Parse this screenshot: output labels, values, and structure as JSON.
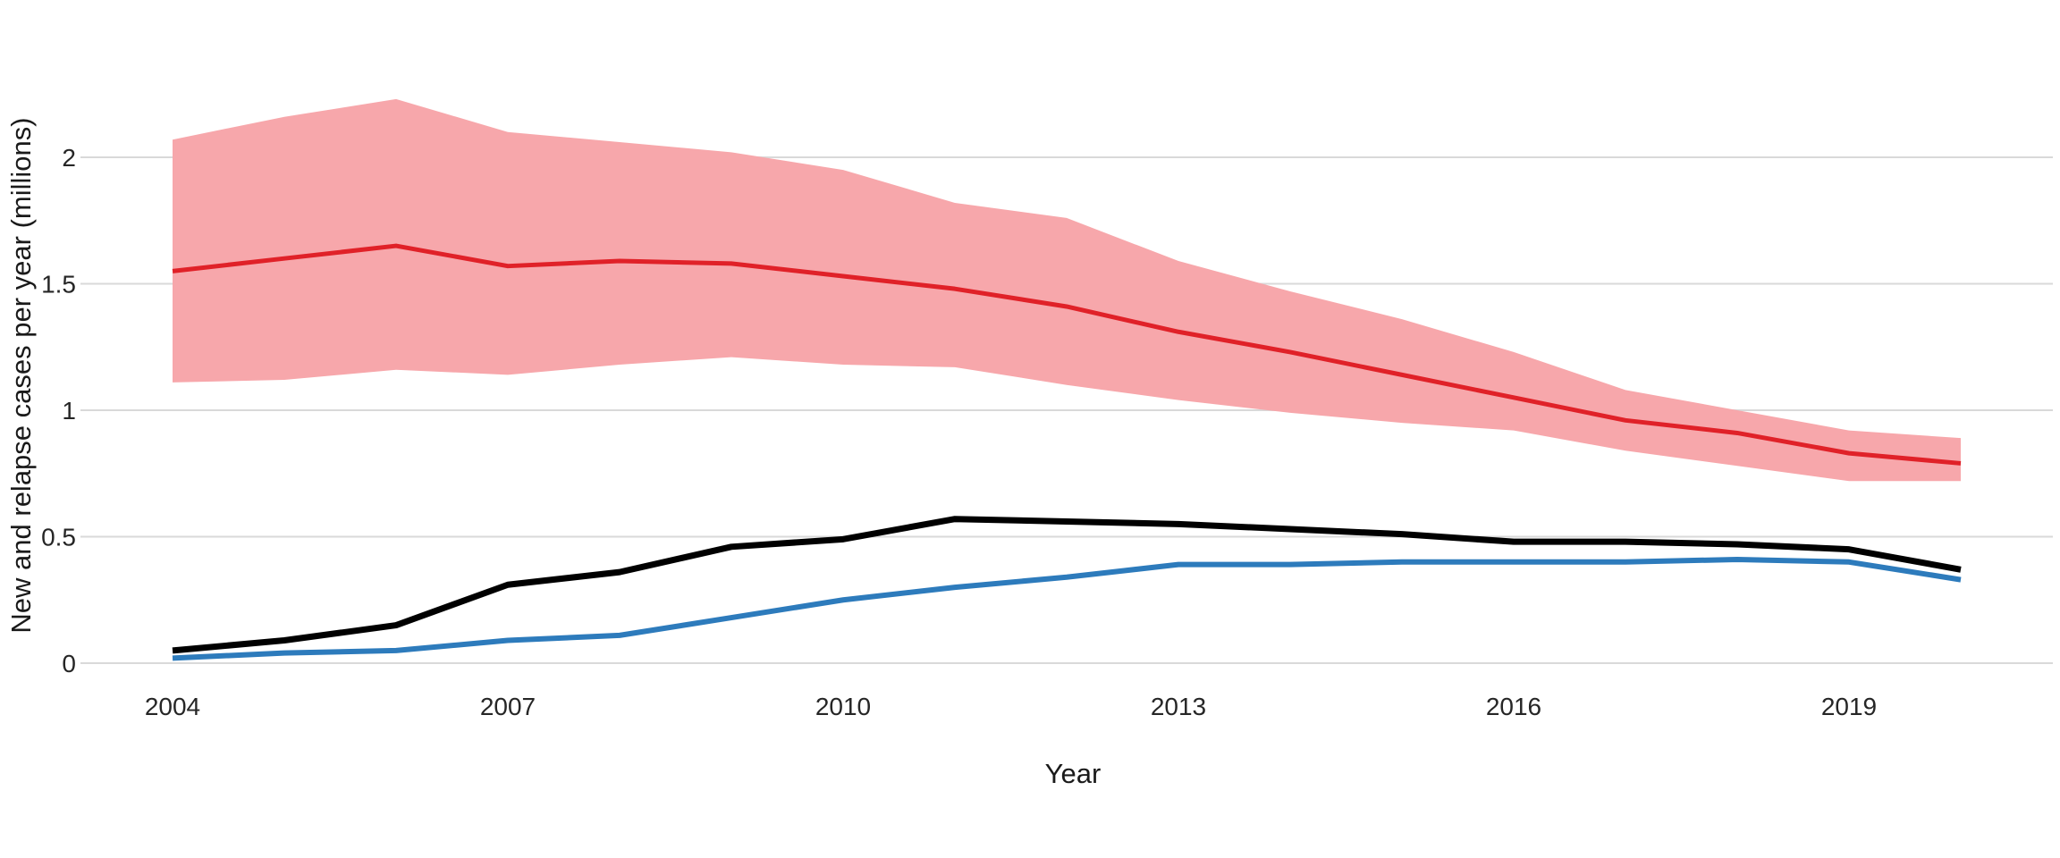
{
  "chart_data": {
    "type": "line",
    "title": "",
    "xlabel": "Year",
    "ylabel": "New and relapse cases per year (millions)",
    "x": [
      2004,
      2005,
      2006,
      2007,
      2008,
      2009,
      2010,
      2011,
      2012,
      2013,
      2014,
      2015,
      2016,
      2017,
      2018,
      2019,
      2020
    ],
    "x_tick_labels": [
      "2004",
      "2007",
      "2010",
      "2013",
      "2016",
      "2019"
    ],
    "x_ticks": [
      2004,
      2007,
      2010,
      2013,
      2016,
      2019
    ],
    "y_tick_labels": [
      "0",
      "0.5",
      "1",
      "1.5",
      "2"
    ],
    "y_ticks": [
      0,
      0.5,
      1,
      1.5,
      2
    ],
    "ylim": [
      0,
      2.35
    ],
    "grid": "horizontal-only",
    "grid_color": "#d9d9d9",
    "legend_position": "none",
    "background": "#ffffff",
    "series": [
      {
        "name": "red_band",
        "type": "band",
        "color": "#f7a7ab",
        "upper": [
          2.07,
          2.16,
          2.23,
          2.1,
          2.06,
          2.02,
          1.95,
          1.82,
          1.76,
          1.59,
          1.47,
          1.36,
          1.23,
          1.08,
          1.0,
          0.92,
          0.89
        ],
        "lower": [
          1.11,
          1.12,
          1.16,
          1.14,
          1.18,
          1.21,
          1.18,
          1.17,
          1.1,
          1.04,
          0.99,
          0.95,
          0.92,
          0.84,
          0.78,
          0.72,
          0.72
        ]
      },
      {
        "name": "red_line",
        "type": "line",
        "color": "#e02128",
        "stroke_width": 5,
        "values": [
          1.55,
          1.6,
          1.65,
          1.57,
          1.59,
          1.58,
          1.53,
          1.48,
          1.41,
          1.31,
          1.23,
          1.14,
          1.05,
          0.96,
          0.91,
          0.83,
          0.79
        ]
      },
      {
        "name": "black_line",
        "type": "line",
        "color": "#000000",
        "stroke_width": 7,
        "values": [
          0.05,
          0.09,
          0.15,
          0.31,
          0.36,
          0.46,
          0.49,
          0.57,
          0.56,
          0.55,
          0.53,
          0.51,
          0.48,
          0.48,
          0.47,
          0.45,
          0.37
        ]
      },
      {
        "name": "blue_line",
        "type": "line",
        "color": "#2d7bbc",
        "stroke_width": 6,
        "values": [
          0.02,
          0.04,
          0.05,
          0.09,
          0.11,
          0.18,
          0.25,
          0.3,
          0.34,
          0.39,
          0.39,
          0.4,
          0.4,
          0.4,
          0.41,
          0.4,
          0.33
        ]
      }
    ]
  }
}
